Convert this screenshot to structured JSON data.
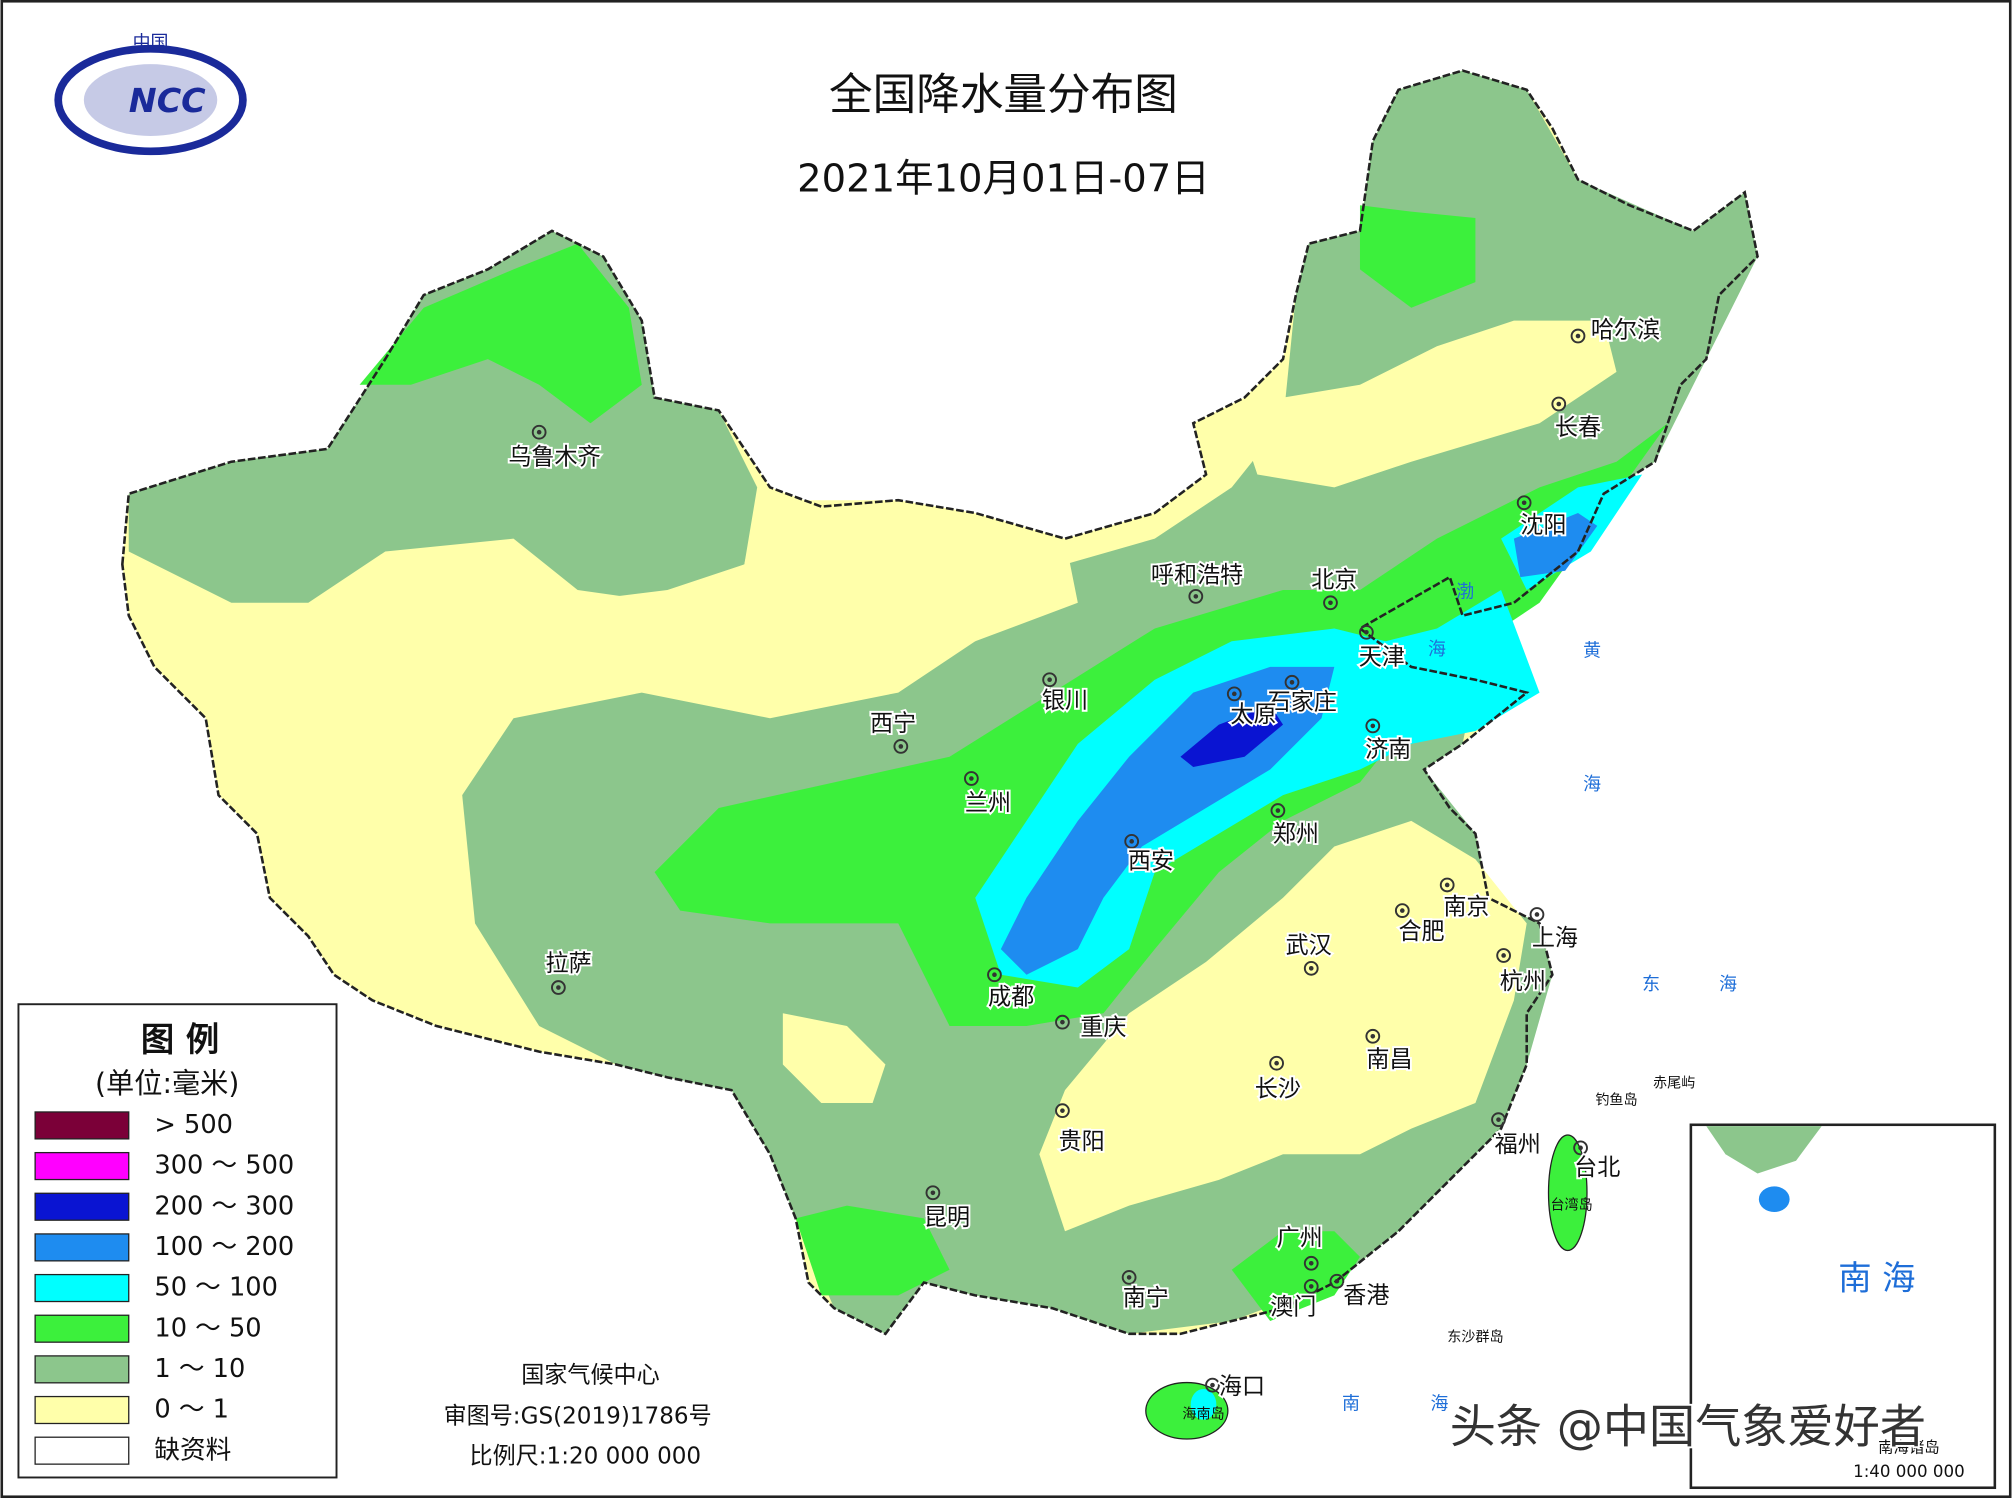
{
  "header": {
    "title": "全国降水量分布图",
    "date": "2021年10月01日-07日",
    "logo_top": "中国",
    "logo_text": "NCC"
  },
  "legend": {
    "title": "图 例",
    "unit": "(单位:毫米)",
    "items": [
      {
        "label": "> 500",
        "color": "#7b0038"
      },
      {
        "label": "300 ～ 500",
        "color": "#ff00ff"
      },
      {
        "label": "200 ～ 300",
        "color": "#0a14d2"
      },
      {
        "label": "100 ～ 200",
        "color": "#1e8cf0"
      },
      {
        "label": "50 ～ 100",
        "color": "#00ffff"
      },
      {
        "label": "10 ～ 50",
        "color": "#3cf03c"
      },
      {
        "label": "1 ～ 10",
        "color": "#8cc68c"
      },
      {
        "label": "0 ～ 1",
        "color": "#ffffaa"
      },
      {
        "label": "缺资料",
        "color": "#ffffff"
      }
    ]
  },
  "cities": [
    "乌鲁木齐",
    "拉萨",
    "西宁",
    "兰州",
    "银川",
    "呼和浩特",
    "北京",
    "天津",
    "石家庄",
    "太原",
    "济南",
    "郑州",
    "西安",
    "成都",
    "重庆",
    "贵阳",
    "昆明",
    "南宁",
    "广州",
    "澳门",
    "香港",
    "海口",
    "武汉",
    "长沙",
    "南昌",
    "合肥",
    "南京",
    "上海",
    "杭州",
    "福州",
    "台北",
    "沈阳",
    "长春",
    "哈尔滨"
  ],
  "seas": [
    "渤",
    "海",
    "黄",
    "海",
    "东",
    "海",
    "南",
    "海"
  ],
  "islands": [
    "钓鱼岛",
    "赤尾屿",
    "台湾岛",
    "东沙群岛",
    "海南岛"
  ],
  "inset": {
    "title": "南 海",
    "islands": "南海诸岛",
    "scale": "1:40 000 000"
  },
  "footer": {
    "org": "国家气候中心",
    "approval": "审图号:GS(2019)1786号",
    "scale": "比例尺:1:20 000 000"
  },
  "watermark": "头条 @中国气象爱好者"
}
